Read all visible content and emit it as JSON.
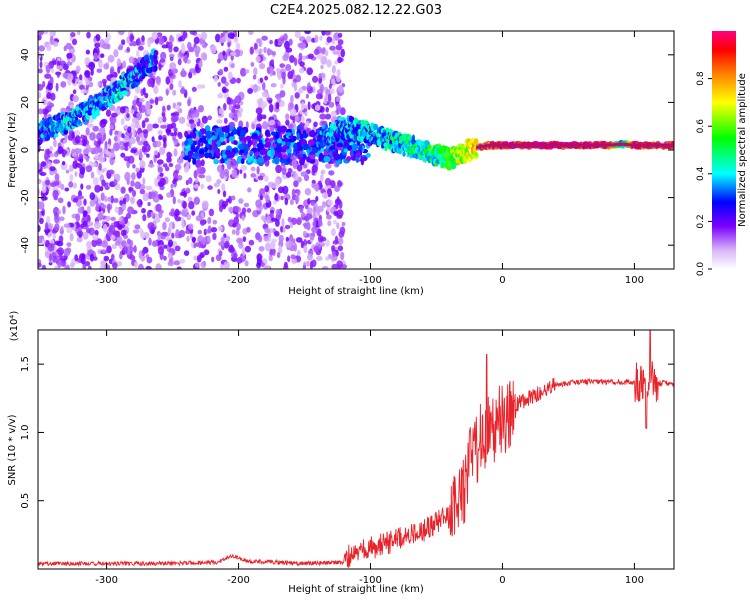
{
  "title": "C2E4.2025.082.12.22.G03",
  "chart_data": [
    {
      "type": "heatmap",
      "xlabel": "Height of straight line (km)",
      "ylabel": "Frequency (Hz)",
      "xlim": [
        -352,
        130
      ],
      "ylim": [
        -50,
        50
      ],
      "x_ticks": [
        -300,
        -200,
        -100,
        0,
        100
      ],
      "y_ticks": [
        -40,
        -20,
        0,
        20,
        40
      ],
      "colorbar": {
        "label": "Normalized spectral amplitude",
        "range": [
          0,
          1
        ],
        "ticks": [
          0.0,
          0.2,
          0.4,
          0.6,
          0.8
        ],
        "tick_labels": [
          "0.0",
          "0.2",
          "0.4",
          "0.6",
          "0.8"
        ],
        "colormap": [
          "#ffffff",
          "#d8b4f8",
          "#7b00ff",
          "#0000ff",
          "#00ffff",
          "#00ff00",
          "#ffff00",
          "#ff8000",
          "#ff0000",
          "#ff0080"
        ]
      },
      "traces": [
        {
          "name": "Doppler trace",
          "x": [
            -352,
            -330,
            -310,
            -290,
            -275,
            -265,
            -140,
            -120,
            -100,
            -80,
            -60,
            -50,
            -40,
            -30,
            -20,
            -10,
            0,
            20,
            40,
            60,
            80,
            90,
            100,
            110,
            130
          ],
          "y": [
            7,
            12,
            18,
            26,
            33,
            38,
            4,
            10,
            7,
            3,
            0,
            -2,
            -4,
            -1,
            1,
            2,
            2,
            2,
            2,
            2,
            2,
            2.5,
            2,
            2,
            2
          ],
          "amplitude": [
            0.3,
            0.35,
            0.3,
            0.35,
            0.3,
            0.3,
            0.3,
            0.35,
            0.35,
            0.4,
            0.45,
            0.45,
            0.55,
            0.65,
            0.75,
            0.85,
            0.95,
            0.95,
            0.95,
            0.95,
            0.9,
            0.4,
            0.9,
            0.9,
            0.9
          ]
        }
      ],
      "grid": false
    },
    {
      "type": "line",
      "xlabel": "Height of straight line (km)",
      "ylabel": "SNR (10 * v/v)",
      "y_multiplier": "(x10⁴)",
      "xlim": [
        -352,
        130
      ],
      "ylim": [
        0,
        1.75
      ],
      "x_ticks": [
        -300,
        -200,
        -100,
        0,
        100
      ],
      "y_ticks": [
        0.5,
        1.0,
        1.5
      ],
      "y_tick_labels": [
        "0.5",
        "1.0",
        "1.5"
      ],
      "color": "#e8232a",
      "series": [
        {
          "x": [
            -352,
            -300,
            -250,
            -215,
            -205,
            -195,
            -150,
            -120,
            -110,
            -100,
            -90,
            -80,
            -70,
            -60,
            -50,
            -40,
            -30,
            -25,
            -20,
            -15,
            -10,
            -5,
            0,
            5,
            10,
            20,
            30,
            40,
            50,
            60,
            70,
            80,
            90,
            100,
            105,
            110,
            115,
            120,
            130
          ],
          "values": [
            0.04,
            0.04,
            0.04,
            0.05,
            0.1,
            0.06,
            0.04,
            0.05,
            0.07,
            0.12,
            0.15,
            0.18,
            0.22,
            0.25,
            0.3,
            0.35,
            0.55,
            0.75,
            0.9,
            0.95,
            1.0,
            1.05,
            1.1,
            1.15,
            1.2,
            1.25,
            1.3,
            1.35,
            1.36,
            1.37,
            1.37,
            1.37,
            1.37,
            1.37,
            1.36,
            1.38,
            1.38,
            1.36,
            1.36
          ]
        }
      ],
      "grid": false
    }
  ]
}
